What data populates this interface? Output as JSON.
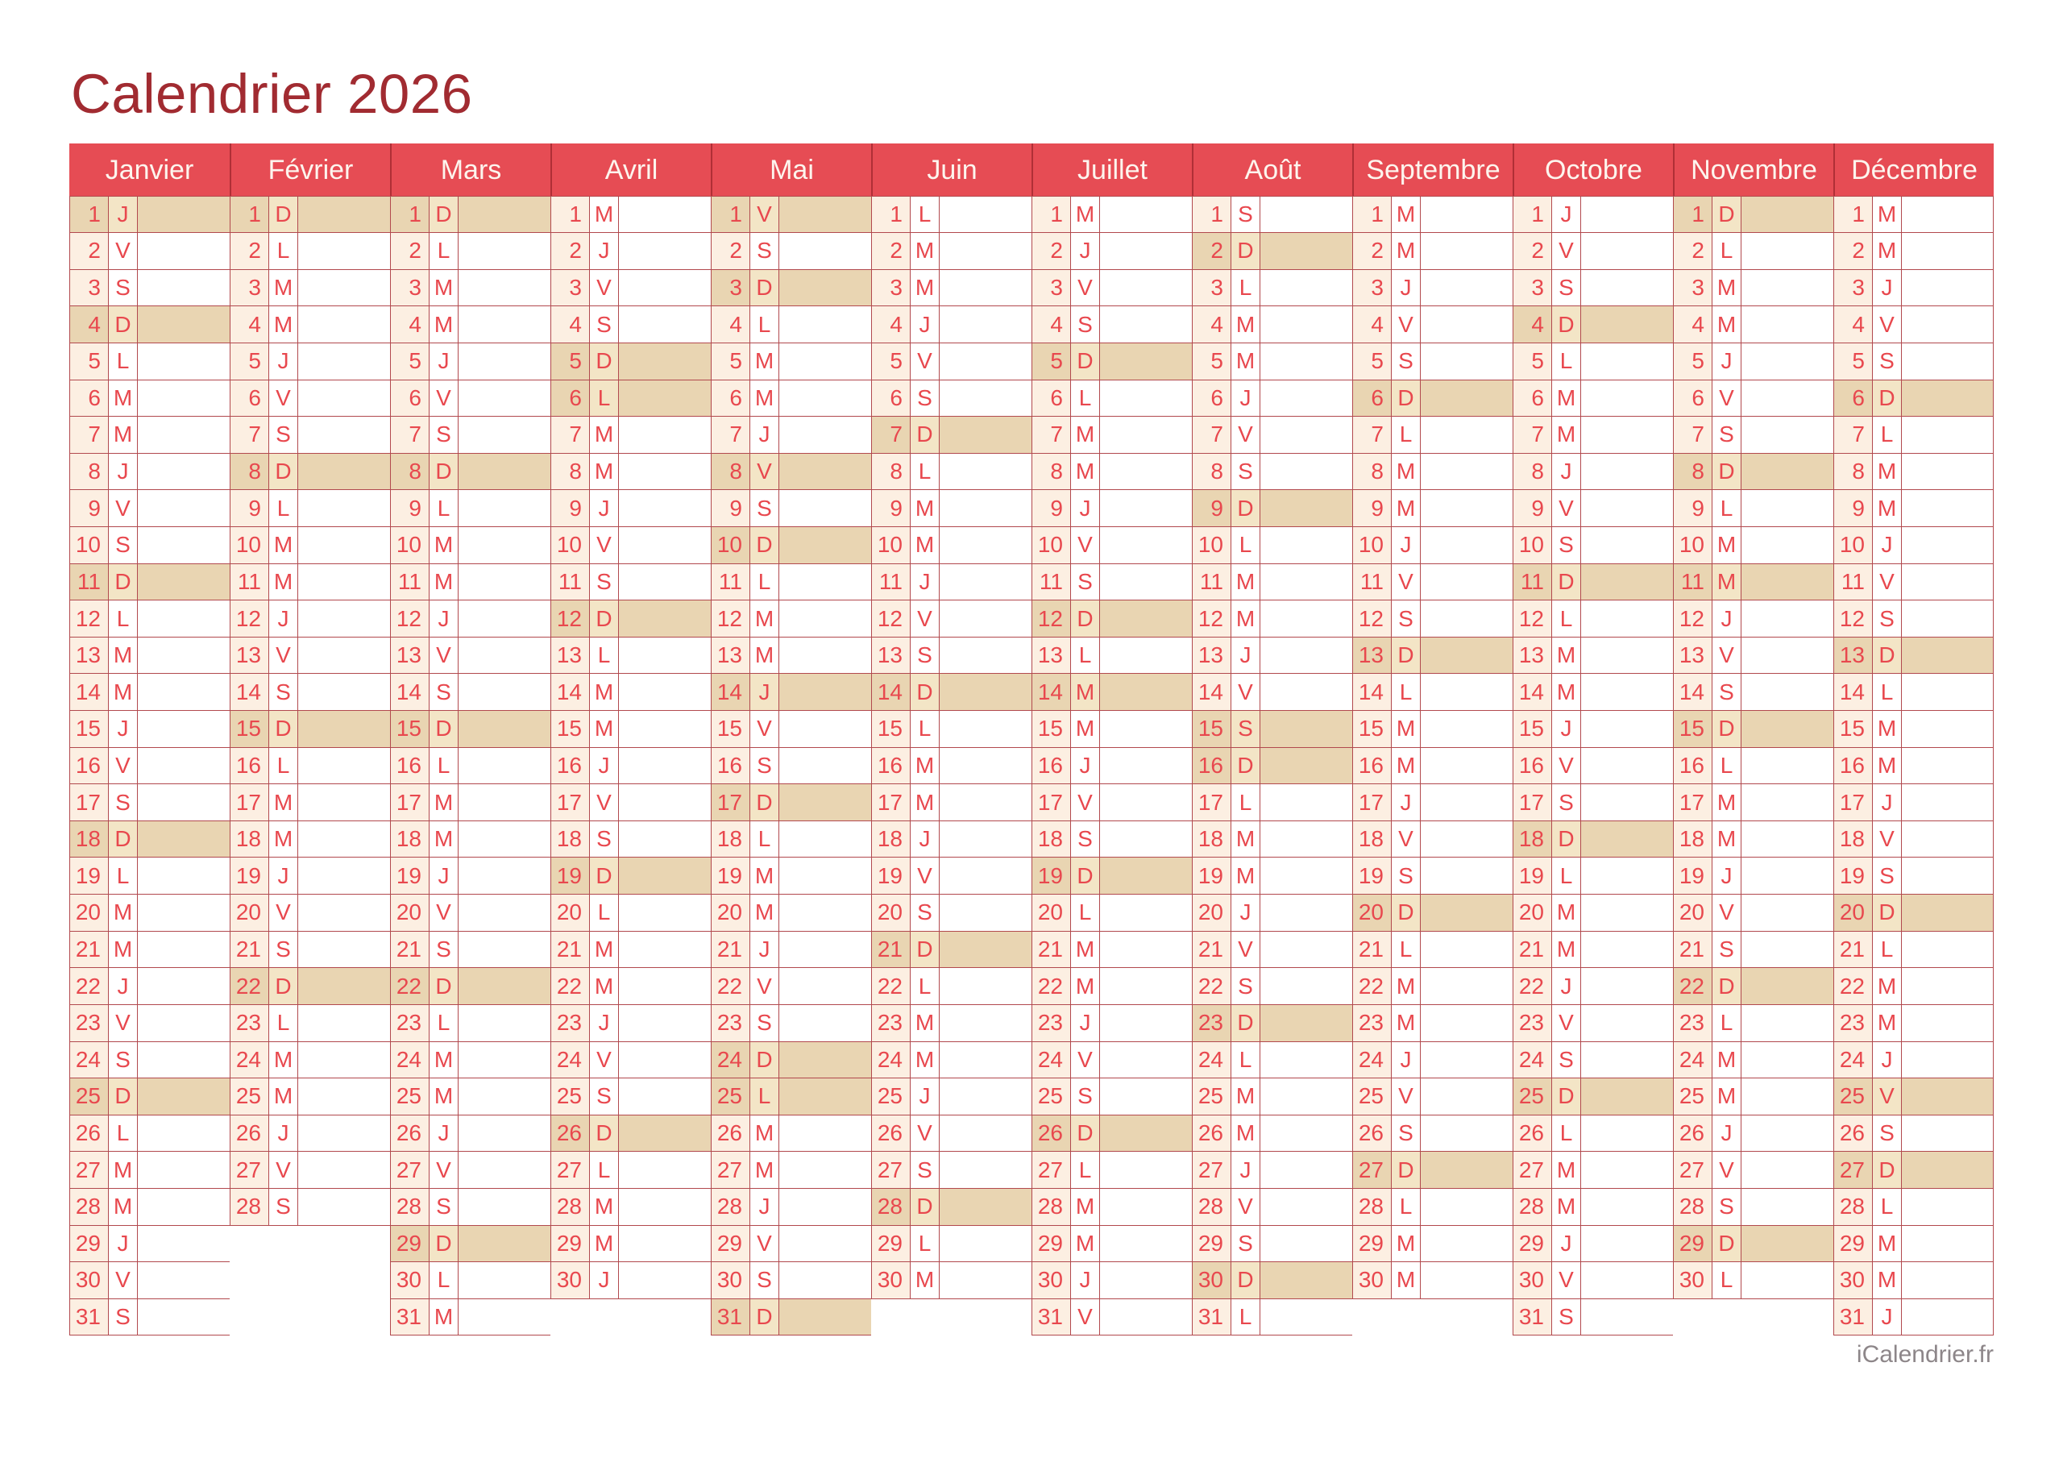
{
  "page": {
    "title": "Calendrier 2026",
    "footer_brand": "iCalendrier.fr"
  },
  "colors": {
    "page_bg": "#ffffff",
    "title_red": "#a12b31",
    "header_red": "#e64c54",
    "header_separator": "#b02f36",
    "header_text": "#fdf5ee",
    "grid_line": "#b2494e",
    "day_text_red": "#e8484e",
    "number_cell_bg": "#fcefe2",
    "note_cell_bg": "#ffffff",
    "highlight_bg": "#e9d5b2",
    "highlight_letter_bg": "#f3e5c6",
    "footer_gray": "#8d8689"
  },
  "calendar": {
    "year": "2026",
    "months": [
      {
        "name": "Janvier",
        "days": 31,
        "day_letters": "JVSDLMMJVSDLMMJVSDLMMJVSDLMMJVS",
        "highlighted_days": [
          1,
          4,
          11,
          18,
          25
        ]
      },
      {
        "name": "Février",
        "days": 28,
        "day_letters": "DLMMJVSDLMMJVSDLMMJVSDLMMJVS",
        "highlighted_days": [
          1,
          8,
          15,
          22
        ]
      },
      {
        "name": "Mars",
        "days": 31,
        "day_letters": "DLMMJVSDLMMJVSDLMMJVSDLMMJVSDLM",
        "highlighted_days": [
          1,
          8,
          15,
          22,
          29
        ]
      },
      {
        "name": "Avril",
        "days": 30,
        "day_letters": "MJVSDLMMJVSDLMMJVSDLMMJVSDLMMJ",
        "highlighted_days": [
          5,
          6,
          12,
          19,
          26
        ]
      },
      {
        "name": "Mai",
        "days": 31,
        "day_letters": "VSDLMMJVSDLMMJVSDLMMJVSDLMMJVSD",
        "highlighted_days": [
          1,
          3,
          8,
          10,
          14,
          17,
          24,
          25,
          31
        ]
      },
      {
        "name": "Juin",
        "days": 30,
        "day_letters": "LMMJVSDLMMJVSDLMMJVSDLMMJVSDLM",
        "highlighted_days": [
          7,
          14,
          21,
          28
        ]
      },
      {
        "name": "Juillet",
        "days": 31,
        "day_letters": "MJVSDLMMJVSDLMMJVSDLMMJVSDLMMJV",
        "highlighted_days": [
          5,
          12,
          14,
          19,
          26
        ]
      },
      {
        "name": "Août",
        "days": 31,
        "day_letters": "SDLMMJVSDLMMJVSDLMMJVSDLMMJVSDL",
        "highlighted_days": [
          2,
          9,
          15,
          16,
          23,
          30
        ]
      },
      {
        "name": "Septembre",
        "days": 30,
        "day_letters": "MMJVSDLMMJVSDLMMJVSDLMMJVSDLMM",
        "highlighted_days": [
          6,
          13,
          20,
          27
        ]
      },
      {
        "name": "Octobre",
        "days": 31,
        "day_letters": "JVSDLMMJVSDLMMJVSDLMMJVSDLMMJVS",
        "highlighted_days": [
          4,
          11,
          18,
          25
        ]
      },
      {
        "name": "Novembre",
        "days": 30,
        "day_letters": "DLMMJVSDLMMJVSDLMMJVSDLMMJVSDL",
        "highlighted_days": [
          1,
          8,
          11,
          15,
          22,
          29
        ]
      },
      {
        "name": "Décembre",
        "days": 31,
        "day_letters": "MMJVSDLMMJVSDLMMJVSDLMMJVSDLMMJ",
        "highlighted_days": [
          6,
          13,
          20,
          25,
          27
        ]
      }
    ]
  }
}
